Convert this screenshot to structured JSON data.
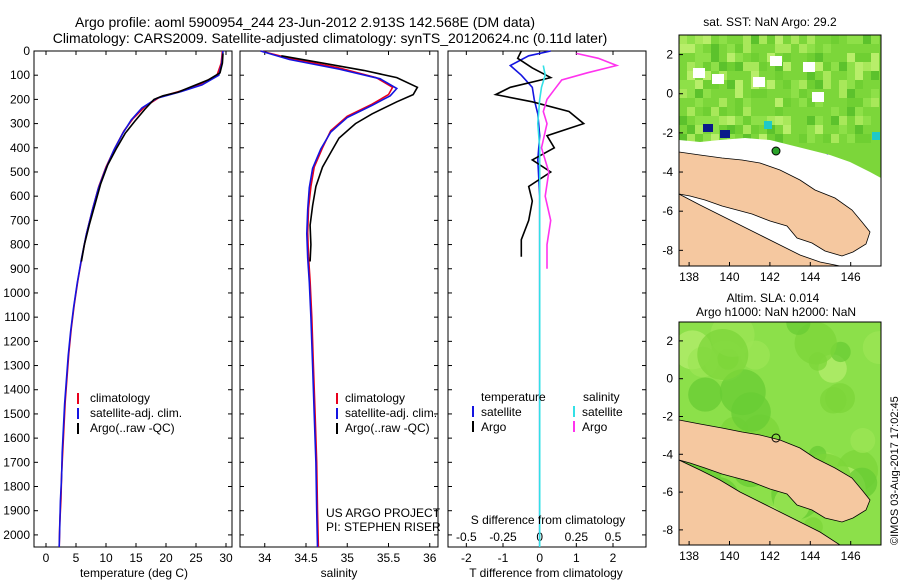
{
  "header": {
    "title_line1": "Argo profile: aoml 5900954_244 23-Jun-2012 2.913S 142.568E (DM data)",
    "title_line2": "Climatology: CARS2009. Satellite-adjusted climatology: synTS_20120624.nc (0.11d later)"
  },
  "colors": {
    "climatology": "#e8001c",
    "satellite": "#1414e0",
    "argo": "#000000",
    "salinity_sat": "#33e0e6",
    "salinity_argo": "#ff33ee",
    "land": "#f5c8a0",
    "ocean_green": "#7cd63a"
  },
  "chart_data": [
    {
      "type": "line",
      "id": "temperature",
      "xlabel": "temperature (deg C)",
      "ylabel": "",
      "xlim": [
        -2,
        31
      ],
      "ylim": [
        2050,
        0
      ],
      "xticks": [
        "0",
        "5",
        "10",
        "15",
        "20",
        "25",
        "30"
      ],
      "xtick_values": [
        0,
        5,
        10,
        15,
        20,
        25,
        30
      ],
      "yticks": [
        "0",
        "100",
        "200",
        "300",
        "400",
        "500",
        "600",
        "700",
        "800",
        "900",
        "1000",
        "1100",
        "1200",
        "1300",
        "1400",
        "1500",
        "1600",
        "1700",
        "1800",
        "1900",
        "2000"
      ],
      "ytick_values": [
        0,
        100,
        200,
        300,
        400,
        500,
        600,
        700,
        800,
        900,
        1000,
        1100,
        1200,
        1300,
        1400,
        1500,
        1600,
        1700,
        1800,
        1900,
        2000
      ],
      "legend": [
        "climatology",
        "satellite-adj. clim.",
        "Argo(..raw -QC)"
      ],
      "legend_position": "bottom-right",
      "series": [
        {
          "name": "climatology",
          "color": "#e8001c",
          "points": [
            [
              29.4,
              0
            ],
            [
              29.2,
              50
            ],
            [
              28.5,
              100
            ],
            [
              25.5,
              140
            ],
            [
              22.5,
              165
            ],
            [
              19,
              190
            ],
            [
              16.5,
              230
            ],
            [
              14.5,
              280
            ],
            [
              13,
              330
            ],
            [
              11.5,
              400
            ],
            [
              10,
              480
            ],
            [
              8.8,
              560
            ],
            [
              7.8,
              650
            ],
            [
              6.8,
              750
            ],
            [
              6,
              850
            ],
            [
              5.3,
              950
            ],
            [
              4.7,
              1050
            ],
            [
              4.2,
              1150
            ],
            [
              3.8,
              1250
            ],
            [
              3.5,
              1350
            ],
            [
              3.2,
              1450
            ],
            [
              3,
              1550
            ],
            [
              2.8,
              1650
            ],
            [
              2.6,
              1750
            ],
            [
              2.5,
              1850
            ],
            [
              2.3,
              1950
            ],
            [
              2.2,
              2050
            ]
          ]
        },
        {
          "name": "satellite-adj. clim.",
          "color": "#1414e0",
          "points": [
            [
              29.5,
              0
            ],
            [
              29.3,
              50
            ],
            [
              28.8,
              100
            ],
            [
              26,
              140
            ],
            [
              22.5,
              168
            ],
            [
              18.5,
              195
            ],
            [
              16,
              235
            ],
            [
              14.2,
              285
            ],
            [
              12.8,
              340
            ],
            [
              11.3,
              410
            ],
            [
              9.9,
              490
            ],
            [
              8.7,
              570
            ],
            [
              7.7,
              660
            ],
            [
              6.7,
              760
            ],
            [
              5.9,
              860
            ],
            [
              5.2,
              960
            ],
            [
              4.6,
              1060
            ],
            [
              4.1,
              1160
            ],
            [
              3.7,
              1260
            ],
            [
              3.4,
              1360
            ],
            [
              3.1,
              1460
            ],
            [
              2.9,
              1560
            ],
            [
              2.7,
              1660
            ],
            [
              2.6,
              1760
            ],
            [
              2.4,
              1860
            ],
            [
              2.3,
              1960
            ],
            [
              2.2,
              2050
            ]
          ]
        },
        {
          "name": "Argo(..raw -QC)",
          "color": "#000000",
          "points": [
            [
              29.5,
              10
            ],
            [
              29.4,
              50
            ],
            [
              29,
              90
            ],
            [
              27,
              120
            ],
            [
              24,
              150
            ],
            [
              22,
              170
            ],
            [
              19.5,
              185
            ],
            [
              18,
              200
            ],
            [
              16.5,
              240
            ],
            [
              14.8,
              290
            ],
            [
              13.2,
              340
            ],
            [
              11.8,
              400
            ],
            [
              10.3,
              470
            ],
            [
              9.1,
              550
            ],
            [
              8.1,
              640
            ],
            [
              7.2,
              720
            ],
            [
              6.4,
              800
            ],
            [
              5.9,
              870
            ]
          ]
        }
      ]
    },
    {
      "type": "line",
      "id": "salinity",
      "xlabel": "salinity",
      "xlim": [
        33.7,
        36.1
      ],
      "ylim": [
        2050,
        0
      ],
      "xticks": [
        "34",
        "34.5",
        "35",
        "35.5",
        "36"
      ],
      "xtick_values": [
        34,
        34.5,
        35,
        35.5,
        36
      ],
      "legend": [
        "climatology",
        "satellite-adj. clim.",
        "Argo(..raw -QC)"
      ],
      "legend_position": "bottom-right",
      "annotations": [
        "US ARGO PROJECT",
        "PI: STEPHEN RISER"
      ],
      "series": [
        {
          "name": "climatology",
          "color": "#e8001c",
          "points": [
            [
              33.95,
              0
            ],
            [
              34.3,
              30
            ],
            [
              34.9,
              70
            ],
            [
              35.35,
              110
            ],
            [
              35.55,
              150
            ],
            [
              35.5,
              180
            ],
            [
              35.3,
              220
            ],
            [
              35.0,
              270
            ],
            [
              34.8,
              330
            ],
            [
              34.7,
              400
            ],
            [
              34.6,
              480
            ],
            [
              34.56,
              560
            ],
            [
              34.53,
              650
            ],
            [
              34.52,
              750
            ],
            [
              34.53,
              850
            ],
            [
              34.55,
              950
            ],
            [
              34.57,
              1100
            ],
            [
              34.59,
              1300
            ],
            [
              34.61,
              1500
            ],
            [
              34.63,
              1700
            ],
            [
              34.64,
              1900
            ],
            [
              34.65,
              2050
            ]
          ]
        },
        {
          "name": "satellite-adj. clim.",
          "color": "#1414e0",
          "points": [
            [
              33.95,
              0
            ],
            [
              34.3,
              35
            ],
            [
              34.9,
              75
            ],
            [
              35.4,
              115
            ],
            [
              35.6,
              155
            ],
            [
              35.52,
              185
            ],
            [
              35.3,
              225
            ],
            [
              35.0,
              275
            ],
            [
              34.8,
              335
            ],
            [
              34.68,
              405
            ],
            [
              34.58,
              485
            ],
            [
              34.54,
              565
            ],
            [
              34.52,
              655
            ],
            [
              34.51,
              755
            ],
            [
              34.52,
              855
            ],
            [
              34.54,
              955
            ],
            [
              34.56,
              1100
            ],
            [
              34.58,
              1300
            ],
            [
              34.6,
              1500
            ],
            [
              34.62,
              1700
            ],
            [
              34.63,
              1900
            ],
            [
              34.64,
              2050
            ]
          ]
        },
        {
          "name": "Argo(..raw -QC)",
          "color": "#000000",
          "points": [
            [
              34.2,
              20
            ],
            [
              34.7,
              50
            ],
            [
              35.2,
              80
            ],
            [
              35.6,
              110
            ],
            [
              35.85,
              150
            ],
            [
              35.8,
              180
            ],
            [
              35.6,
              210
            ],
            [
              35.3,
              260
            ],
            [
              35.1,
              300
            ],
            [
              34.9,
              360
            ],
            [
              34.8,
              420
            ],
            [
              34.7,
              480
            ],
            [
              34.62,
              560
            ],
            [
              34.58,
              640
            ],
            [
              34.55,
              720
            ],
            [
              34.56,
              800
            ],
            [
              34.55,
              870
            ]
          ]
        }
      ]
    },
    {
      "type": "line",
      "id": "difference",
      "xlabel": "T difference from climatology",
      "xlabel_top": "S difference from climatology",
      "xlim": [
        -2.5,
        2.9
      ],
      "ylim": [
        2050,
        0
      ],
      "xticks": [
        "-2",
        "-1",
        "0",
        "1",
        "2"
      ],
      "xtick_values": [
        -2,
        -1,
        0,
        1,
        2
      ],
      "s_xticks": [
        "-0.5",
        "-0.25",
        "0",
        "0.25",
        "0.5"
      ],
      "s_xtick_values": [
        -0.5,
        -0.25,
        0,
        0.25,
        0.5
      ],
      "legend_temperature_title": "temperature",
      "legend_salinity_title": "salinity",
      "legend": [
        "satellite",
        "Argo",
        "satellite",
        "Argo"
      ],
      "series": [
        {
          "name": "temperature satellite",
          "color": "#1414e0",
          "points": [
            [
              0.3,
              0
            ],
            [
              -0.3,
              20
            ],
            [
              -0.8,
              60
            ],
            [
              -0.5,
              100
            ],
            [
              -0.2,
              150
            ],
            [
              -0.15,
              200
            ],
            [
              -0.05,
              260
            ],
            [
              0,
              350
            ],
            [
              -0.05,
              450
            ],
            [
              0,
              600
            ],
            [
              0,
              800
            ],
            [
              0,
              1000
            ],
            [
              0,
              1200
            ],
            [
              0,
              1400
            ],
            [
              0,
              1600
            ],
            [
              0,
              1800
            ],
            [
              0,
              2050
            ]
          ]
        },
        {
          "name": "temperature Argo",
          "color": "#000000",
          "points": [
            [
              -0.5,
              0
            ],
            [
              -0.6,
              30
            ],
            [
              -0.2,
              70
            ],
            [
              0.3,
              110
            ],
            [
              -0.8,
              150
            ],
            [
              -1.2,
              180
            ],
            [
              -0.2,
              210
            ],
            [
              0.8,
              250
            ],
            [
              1.2,
              300
            ],
            [
              0.2,
              350
            ],
            [
              0.4,
              400
            ],
            [
              -0.2,
              450
            ],
            [
              0.3,
              500
            ],
            [
              -0.3,
              560
            ],
            [
              -0.2,
              620
            ],
            [
              -0.3,
              700
            ],
            [
              -0.5,
              780
            ],
            [
              -0.5,
              850
            ]
          ]
        },
        {
          "name": "salinity satellite",
          "color": "#33e0e6",
          "points": [
            [
              0.1,
              60
            ],
            [
              0.15,
              100
            ],
            [
              0.05,
              150
            ],
            [
              0,
              200
            ],
            [
              -0.05,
              300
            ],
            [
              0,
              400
            ],
            [
              0,
              500
            ],
            [
              0,
              700
            ],
            [
              0,
              900
            ],
            [
              0,
              1100
            ],
            [
              0,
              1300
            ],
            [
              0,
              1500
            ],
            [
              0,
              1700
            ],
            [
              0,
              1900
            ],
            [
              0,
              2050
            ]
          ]
        },
        {
          "name": "salinity Argo",
          "color": "#ff33ee",
          "points": [
            [
              1.0,
              10
            ],
            [
              1.6,
              30
            ],
            [
              2.1,
              60
            ],
            [
              1.3,
              90
            ],
            [
              0.6,
              120
            ],
            [
              0.4,
              160
            ],
            [
              0.2,
              200
            ],
            [
              0.1,
              250
            ],
            [
              0.2,
              300
            ],
            [
              0.05,
              400
            ],
            [
              0.25,
              500
            ],
            [
              0.15,
              600
            ],
            [
              0.3,
              700
            ],
            [
              0.2,
              800
            ],
            [
              0.2,
              900
            ]
          ]
        }
      ]
    },
    {
      "type": "heatmap",
      "id": "sst-map",
      "title": "sat. SST: NaN Argo: 29.2",
      "xticks": [
        "138",
        "140",
        "142",
        "144",
        "146"
      ],
      "xtick_values": [
        138,
        140,
        142,
        144,
        146
      ],
      "yticks": [
        "2",
        "0",
        "-2",
        "-4",
        "-6",
        "-8"
      ],
      "ytick_values": [
        2,
        0,
        -2,
        -4,
        -6,
        -8
      ],
      "xlim": [
        137.5,
        147.5
      ],
      "ylim": [
        -8.8,
        3
      ],
      "argo_position": [
        142.568,
        -2.913
      ]
    },
    {
      "type": "heatmap",
      "id": "sla-map",
      "title_line1": "Altim. SLA: 0.014",
      "title_line2": "Argo h1000: NaN h2000: NaN",
      "xticks": [
        "138",
        "140",
        "142",
        "144",
        "146"
      ],
      "xtick_values": [
        138,
        140,
        142,
        144,
        146
      ],
      "yticks": [
        "2",
        "0",
        "-2",
        "-4",
        "-6",
        "-8"
      ],
      "ytick_values": [
        2,
        0,
        -2,
        -4,
        -6,
        -8
      ],
      "xlim": [
        137.5,
        147.5
      ],
      "ylim": [
        -8.8,
        3
      ],
      "argo_position": [
        142.568,
        -2.913
      ]
    }
  ],
  "watermark": "©IMOS 03-Aug-2017 17:02:45"
}
